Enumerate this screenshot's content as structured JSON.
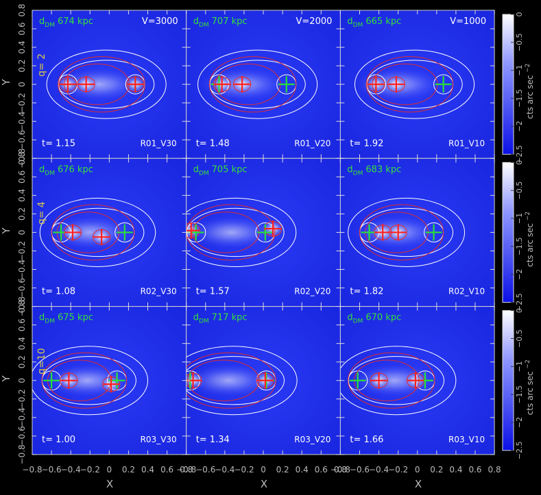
{
  "chart_data": {
    "type": "heatmap",
    "xlabel": "X",
    "ylabel": "Y",
    "xlim": [
      -0.8,
      0.8
    ],
    "ylim": [
      -0.8,
      0.8
    ],
    "x_ticks": [
      "−0.8",
      "−0.6",
      "−0.4",
      "−0.2",
      "0",
      "0.2",
      "0.4",
      "0.6",
      "0.8"
    ],
    "y_ticks": [
      "−0.8",
      "−0.6",
      "−0.4",
      "−0.2",
      "0",
      "0.2",
      "0.4",
      "0.6",
      "0.8"
    ],
    "dm_prefix": "d",
    "dm_sub": "DM",
    "dm_unit": "kpc",
    "t_label": "t=",
    "velocity_labels": [
      "V=3000",
      "V=2000",
      "V=1000"
    ],
    "row_labels": [
      "q= 2",
      "q= 4",
      "q=10"
    ],
    "colorbar": {
      "label": "cts arc sec",
      "label_exp": "−2",
      "range": [
        -2.5,
        0
      ],
      "ticks": [
        "0",
        "−0.5",
        "−1",
        "−1.5",
        "−2",
        "−2.5"
      ]
    },
    "panels": [
      {
        "dm": "674",
        "t": "1.15",
        "id": "R01_V30",
        "sub": [
          [
            -0.24,
            0.0
          ],
          [
            0.27,
            0.0
          ],
          [
            -0.43,
            0.0
          ]
        ],
        "dmpk": [
          [
            -0.43,
            0.0
          ],
          [
            0.27,
            0.0
          ]
        ],
        "rows": 0
      },
      {
        "dm": "707",
        "t": "1.48",
        "id": "R01_V20",
        "sub": [
          [
            -0.43,
            0.0
          ],
          [
            -0.22,
            0.0
          ]
        ],
        "dmpk": [
          [
            -0.46,
            0.0
          ],
          [
            0.24,
            0.0
          ]
        ],
        "rows": 0
      },
      {
        "dm": "665",
        "t": "1.92",
        "id": "R01_V10",
        "sub": [
          [
            -0.22,
            0.0
          ],
          [
            -0.43,
            0.0
          ]
        ],
        "dmpk": [
          [
            -0.43,
            0.0
          ],
          [
            0.27,
            0.0
          ]
        ],
        "rows": 0
      },
      {
        "dm": "676",
        "t": "1.08",
        "id": "R02_V30",
        "sub": [
          [
            -0.38,
            0.0
          ],
          [
            -0.08,
            -0.05
          ]
        ],
        "dmpk": [
          [
            -0.5,
            0.0
          ],
          [
            0.16,
            0.0
          ]
        ],
        "rows": 1
      },
      {
        "dm": "705",
        "t": "1.57",
        "id": "R02_V20",
        "sub": [
          [
            -0.75,
            0.02
          ],
          [
            0.1,
            0.04
          ]
        ],
        "dmpk": [
          [
            -0.7,
            0.0
          ],
          [
            0.02,
            0.0
          ]
        ],
        "rows": 1
      },
      {
        "dm": "683",
        "t": "1.82",
        "id": "R02_V10",
        "sub": [
          [
            -0.36,
            0.0
          ],
          [
            -0.2,
            0.0
          ]
        ],
        "dmpk": [
          [
            -0.5,
            0.0
          ],
          [
            0.17,
            0.0
          ]
        ],
        "rows": 1
      },
      {
        "dm": "675",
        "t": "1.00",
        "id": "R03_V30",
        "sub": [
          [
            -0.42,
            0.0
          ],
          [
            0.02,
            -0.04
          ]
        ],
        "dmpk": [
          [
            -0.6,
            0.0
          ],
          [
            0.08,
            0.0
          ]
        ],
        "rows": 2
      },
      {
        "dm": "717",
        "t": "1.34",
        "id": "R03_V20",
        "sub": [
          [
            -0.73,
            0.0
          ],
          [
            0.02,
            0.0
          ]
        ],
        "dmpk": [
          [
            -0.76,
            0.0
          ],
          [
            0.03,
            0.0
          ]
        ],
        "rows": 2
      },
      {
        "dm": "670",
        "t": "1.66",
        "id": "R03_V10",
        "sub": [
          [
            -0.4,
            0.0
          ],
          [
            -0.02,
            0.0
          ]
        ],
        "dmpk": [
          [
            -0.62,
            0.0
          ],
          [
            0.08,
            0.0
          ]
        ],
        "rows": 2
      }
    ]
  }
}
